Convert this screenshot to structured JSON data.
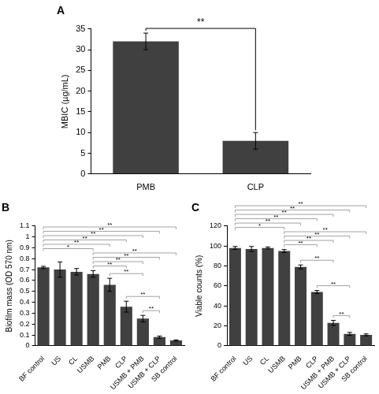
{
  "chart_data": [
    {
      "type": "bar",
      "title": "A",
      "y_label": "MBIC (µg/mL)",
      "categories": [
        "PMB",
        "CLP"
      ],
      "values": [
        32,
        8
      ],
      "errors": [
        2,
        2
      ],
      "color": "#404040",
      "ylim": [
        0,
        35
      ],
      "yticks": [
        0,
        5,
        10,
        15,
        20,
        25,
        30,
        35
      ],
      "grid": false,
      "annotations": [
        {
          "from": "PMB",
          "to": "CLP",
          "text": "**"
        }
      ]
    },
    {
      "type": "bar",
      "title": "B",
      "y_label": "Biofilm mass (OD 570 nm)",
      "categories": [
        "BF control",
        "US",
        "CL",
        "USMB",
        "PMB",
        "CLP",
        "USMB + PMB",
        "USMB + CLP",
        "SB control"
      ],
      "values": [
        0.72,
        0.7,
        0.68,
        0.66,
        0.56,
        0.36,
        0.25,
        0.08,
        0.05
      ],
      "errors": [
        0.01,
        0.07,
        0.03,
        0.03,
        0.06,
        0.05,
        0.03,
        0.01,
        0.005
      ],
      "color": "#404040",
      "ylim": [
        0,
        1.1
      ],
      "yticks": [
        0,
        0.1,
        0.2,
        0.3,
        0.4,
        0.5,
        0.6,
        0.7,
        0.8,
        0.9,
        1,
        1.1
      ],
      "grid": false,
      "annotations": [
        {
          "from": "BF control",
          "to": "SB control",
          "text": "**"
        },
        {
          "from": "BF control",
          "to": "USMB + CLP",
          "text": "**"
        },
        {
          "from": "BF control",
          "to": "USMB + PMB",
          "text": "**"
        },
        {
          "from": "BF control",
          "to": "CLP",
          "text": "**"
        },
        {
          "from": "BF control",
          "to": "PMB",
          "text": "**"
        },
        {
          "from": "BF control",
          "to": "USMB",
          "text": "*"
        },
        {
          "from": "USMB",
          "to": "SB control",
          "text": "**"
        },
        {
          "from": "USMB",
          "to": "USMB + CLP",
          "text": "**"
        },
        {
          "from": "USMB",
          "to": "USMB + PMB",
          "text": "**"
        },
        {
          "from": "USMB",
          "to": "CLP",
          "text": "**"
        },
        {
          "from": "PMB",
          "to": "USMB + PMB",
          "text": "**"
        },
        {
          "from": "CLP",
          "to": "USMB + CLP",
          "text": "**"
        },
        {
          "from": "USMB + PMB",
          "to": "USMB + CLP",
          "text": "**"
        }
      ]
    },
    {
      "type": "bar",
      "title": "C",
      "y_label": "Viable counts (%)",
      "categories": [
        "BF control",
        "US",
        "CL",
        "USMB",
        "PMB",
        "CLP",
        "USMB + PMB",
        "USMB + CLP",
        "SB control"
      ],
      "values": [
        98,
        97,
        98,
        95,
        79,
        54,
        23,
        12,
        11
      ],
      "errors": [
        1.5,
        2.5,
        1,
        1.5,
        2,
        1.5,
        2.5,
        1.5,
        1
      ],
      "color": "#404040",
      "ylim": [
        0,
        120
      ],
      "yticks": [
        0,
        20,
        40,
        60,
        80,
        100,
        120
      ],
      "grid": false,
      "annotations": [
        {
          "from": "BF control",
          "to": "SB control",
          "text": "**"
        },
        {
          "from": "BF control",
          "to": "USMB + CLP",
          "text": "**"
        },
        {
          "from": "BF control",
          "to": "USMB + PMB",
          "text": "**"
        },
        {
          "from": "BF control",
          "to": "CLP",
          "text": "**"
        },
        {
          "from": "BF control",
          "to": "PMB",
          "text": "**"
        },
        {
          "from": "BF control",
          "to": "USMB",
          "text": "*"
        },
        {
          "from": "USMB",
          "to": "SB control",
          "text": "**"
        },
        {
          "from": "USMB",
          "to": "USMB + CLP",
          "text": "**"
        },
        {
          "from": "USMB",
          "to": "USMB + PMB",
          "text": "**"
        },
        {
          "from": "USMB",
          "to": "CLP",
          "text": "**"
        },
        {
          "from": "PMB",
          "to": "USMB + PMB",
          "text": "**"
        },
        {
          "from": "CLP",
          "to": "USMB + CLP",
          "text": "**"
        },
        {
          "from": "USMB + PMB",
          "to": "USMB + CLP",
          "text": "**"
        }
      ]
    }
  ]
}
